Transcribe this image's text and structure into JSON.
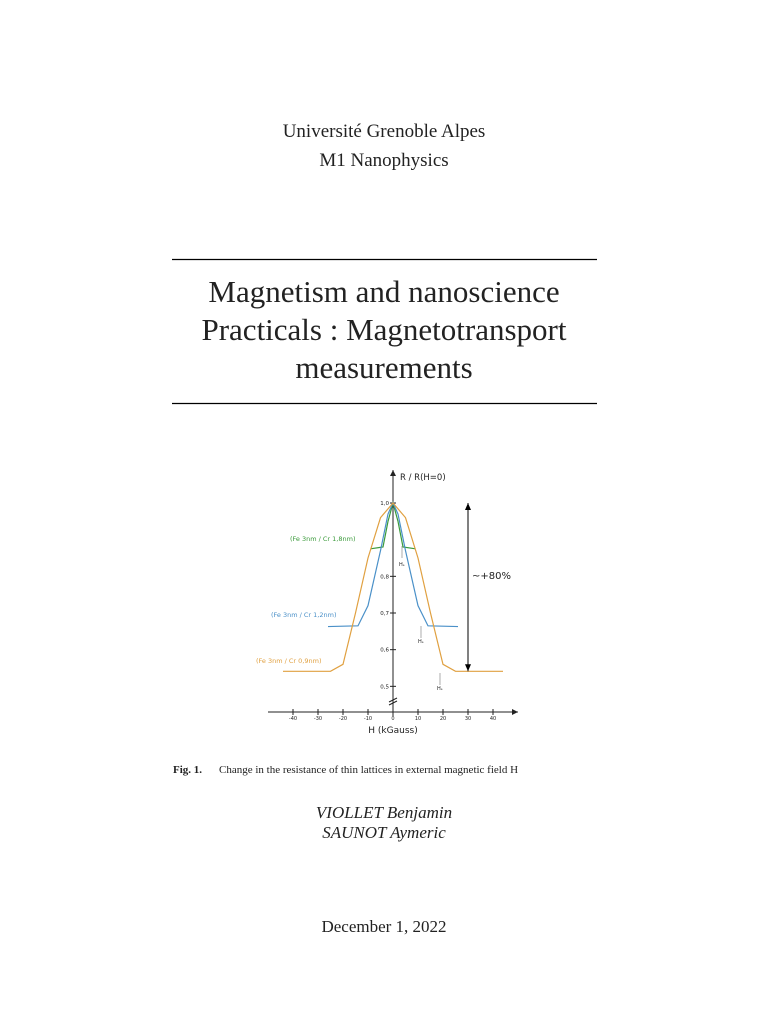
{
  "header": {
    "institution": "Université Grenoble Alpes",
    "program": "M1 Nanophysics"
  },
  "title_lines": [
    "Magnetism and nanoscience",
    "Practicals : Magnetotransport",
    "measurements"
  ],
  "figure": {
    "caption_label": "Fig. 1.",
    "caption": "Change in the resistance of thin lattices in external magnetic field H"
  },
  "authors": [
    "VIOLLET Benjamin",
    "SAUNOT Aymeric"
  ],
  "date": "December 1, 2022",
  "chart_data": {
    "type": "line",
    "x_label": "H (kGauss)",
    "y_label": "R / R(H=0)",
    "xlim": [
      -50,
      50
    ],
    "ylim": [
      0.43,
      1.09
    ],
    "xticks": [
      -40,
      -30,
      -20,
      -10,
      0,
      10,
      20,
      30,
      40
    ],
    "yticks": [
      {
        "value": 0.5,
        "label": "0,5"
      },
      {
        "value": 0.6,
        "label": "0,6"
      },
      {
        "value": 0.7,
        "label": "0,7"
      },
      {
        "value": 0.8,
        "label": "0,8"
      },
      {
        "value": 1.0,
        "label": "1,0"
      }
    ],
    "series": [
      {
        "name": "(Fe 3nm / Cr 1,8nm)",
        "color": "#3a9a3a",
        "x": [
          -9,
          -4,
          -2,
          0,
          2,
          4,
          9
        ],
        "values": [
          0.875,
          0.88,
          0.95,
          1.0,
          0.95,
          0.88,
          0.875
        ]
      },
      {
        "name": "(Fe 3nm / Cr 1,2nm)",
        "color": "#4a90c8",
        "x": [
          -26,
          -14,
          -10,
          -5,
          -2,
          0,
          2,
          5,
          10,
          14,
          26
        ],
        "values": [
          0.663,
          0.665,
          0.72,
          0.87,
          0.97,
          1.0,
          0.97,
          0.87,
          0.72,
          0.665,
          0.663
        ]
      },
      {
        "name": "(Fe 3nm / Cr 0,9nm)",
        "color": "#e0a040",
        "x": [
          -44,
          -25,
          -20,
          -15,
          -10,
          -5,
          0,
          5,
          10,
          15,
          20,
          25,
          44
        ],
        "values": [
          0.541,
          0.541,
          0.56,
          0.7,
          0.85,
          0.96,
          1.0,
          0.96,
          0.85,
          0.7,
          0.56,
          0.541,
          0.541
        ]
      }
    ],
    "annotations": [
      "~+80%",
      "Hₛ",
      "Hₛ",
      "Hₛ"
    ]
  }
}
